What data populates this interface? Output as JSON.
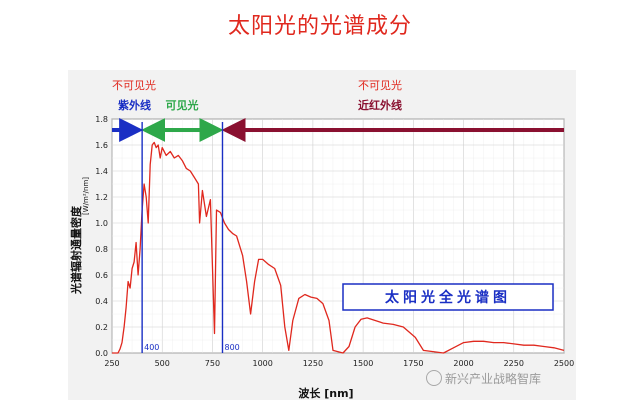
{
  "page": {
    "title": "太阳光的光谱成分",
    "watermark": "新兴产业战略智库",
    "watermark_icon": "wechat-icon"
  },
  "chart_data": {
    "type": "line",
    "title": "",
    "xlabel": "波长 [nm]",
    "ylabel": "光谱辐射通量密度",
    "ylabel_unit": "[W/m²/nm]",
    "xlim": [
      250,
      2500
    ],
    "ylim": [
      0,
      1.8
    ],
    "x_ticks": [
      250,
      500,
      750,
      1000,
      1250,
      1500,
      1750,
      2000,
      2250,
      2500
    ],
    "y_ticks": [
      0.0,
      0.2,
      0.4,
      0.6,
      0.8,
      1.0,
      1.2,
      1.4,
      1.6,
      1.8
    ],
    "grid": true,
    "line_color": "#e0281e",
    "series": [
      {
        "values": [
          {
            "x": 250,
            "y": 0.0
          },
          {
            "x": 280,
            "y": 0.0
          },
          {
            "x": 290,
            "y": 0.03
          },
          {
            "x": 300,
            "y": 0.08
          },
          {
            "x": 310,
            "y": 0.2
          },
          {
            "x": 320,
            "y": 0.35
          },
          {
            "x": 330,
            "y": 0.55
          },
          {
            "x": 340,
            "y": 0.5
          },
          {
            "x": 350,
            "y": 0.65
          },
          {
            "x": 360,
            "y": 0.7
          },
          {
            "x": 370,
            "y": 0.85
          },
          {
            "x": 380,
            "y": 0.6
          },
          {
            "x": 390,
            "y": 0.8
          },
          {
            "x": 400,
            "y": 1.1
          },
          {
            "x": 410,
            "y": 1.3
          },
          {
            "x": 420,
            "y": 1.2
          },
          {
            "x": 430,
            "y": 1.0
          },
          {
            "x": 440,
            "y": 1.45
          },
          {
            "x": 450,
            "y": 1.6
          },
          {
            "x": 460,
            "y": 1.62
          },
          {
            "x": 470,
            "y": 1.58
          },
          {
            "x": 480,
            "y": 1.6
          },
          {
            "x": 490,
            "y": 1.5
          },
          {
            "x": 500,
            "y": 1.58
          },
          {
            "x": 520,
            "y": 1.52
          },
          {
            "x": 540,
            "y": 1.55
          },
          {
            "x": 560,
            "y": 1.5
          },
          {
            "x": 580,
            "y": 1.52
          },
          {
            "x": 600,
            "y": 1.48
          },
          {
            "x": 620,
            "y": 1.42
          },
          {
            "x": 640,
            "y": 1.4
          },
          {
            "x": 660,
            "y": 1.35
          },
          {
            "x": 680,
            "y": 1.3
          },
          {
            "x": 686,
            "y": 1.0
          },
          {
            "x": 700,
            "y": 1.25
          },
          {
            "x": 720,
            "y": 1.05
          },
          {
            "x": 740,
            "y": 1.18
          },
          {
            "x": 760,
            "y": 0.15
          },
          {
            "x": 770,
            "y": 1.1
          },
          {
            "x": 790,
            "y": 1.08
          },
          {
            "x": 810,
            "y": 1.0
          },
          {
            "x": 830,
            "y": 0.95
          },
          {
            "x": 850,
            "y": 0.92
          },
          {
            "x": 870,
            "y": 0.9
          },
          {
            "x": 900,
            "y": 0.75
          },
          {
            "x": 920,
            "y": 0.55
          },
          {
            "x": 940,
            "y": 0.3
          },
          {
            "x": 960,
            "y": 0.55
          },
          {
            "x": 980,
            "y": 0.72
          },
          {
            "x": 1000,
            "y": 0.72
          },
          {
            "x": 1030,
            "y": 0.68
          },
          {
            "x": 1060,
            "y": 0.65
          },
          {
            "x": 1090,
            "y": 0.52
          },
          {
            "x": 1110,
            "y": 0.2
          },
          {
            "x": 1130,
            "y": 0.02
          },
          {
            "x": 1150,
            "y": 0.25
          },
          {
            "x": 1180,
            "y": 0.42
          },
          {
            "x": 1210,
            "y": 0.45
          },
          {
            "x": 1240,
            "y": 0.43
          },
          {
            "x": 1270,
            "y": 0.42
          },
          {
            "x": 1300,
            "y": 0.38
          },
          {
            "x": 1330,
            "y": 0.25
          },
          {
            "x": 1350,
            "y": 0.02
          },
          {
            "x": 1400,
            "y": 0.0
          },
          {
            "x": 1430,
            "y": 0.05
          },
          {
            "x": 1460,
            "y": 0.2
          },
          {
            "x": 1490,
            "y": 0.26
          },
          {
            "x": 1520,
            "y": 0.27
          },
          {
            "x": 1560,
            "y": 0.25
          },
          {
            "x": 1600,
            "y": 0.23
          },
          {
            "x": 1650,
            "y": 0.22
          },
          {
            "x": 1700,
            "y": 0.2
          },
          {
            "x": 1760,
            "y": 0.12
          },
          {
            "x": 1800,
            "y": 0.02
          },
          {
            "x": 1900,
            "y": 0.0
          },
          {
            "x": 1950,
            "y": 0.04
          },
          {
            "x": 2000,
            "y": 0.08
          },
          {
            "x": 2050,
            "y": 0.09
          },
          {
            "x": 2100,
            "y": 0.09
          },
          {
            "x": 2150,
            "y": 0.08
          },
          {
            "x": 2200,
            "y": 0.08
          },
          {
            "x": 2250,
            "y": 0.07
          },
          {
            "x": 2300,
            "y": 0.06
          },
          {
            "x": 2350,
            "y": 0.06
          },
          {
            "x": 2400,
            "y": 0.05
          },
          {
            "x": 2450,
            "y": 0.04
          },
          {
            "x": 2500,
            "y": 0.02
          }
        ]
      }
    ],
    "boundary_markers": [
      {
        "x": 400,
        "label": "400"
      },
      {
        "x": 800,
        "label": "800"
      }
    ],
    "bands": [
      {
        "top_label": "不可见光",
        "label": "紫外线",
        "x_start": 250,
        "x_end": 400,
        "color": "#1a2fc4"
      },
      {
        "top_label": "",
        "label": "可见光",
        "x_start": 400,
        "x_end": 800,
        "color": "#2ea84a"
      },
      {
        "top_label": "不可见光",
        "label": "近红外线",
        "x_start": 800,
        "x_end": 2500,
        "color": "#8a1030"
      }
    ],
    "annotation": "太阳光全光谱图"
  }
}
